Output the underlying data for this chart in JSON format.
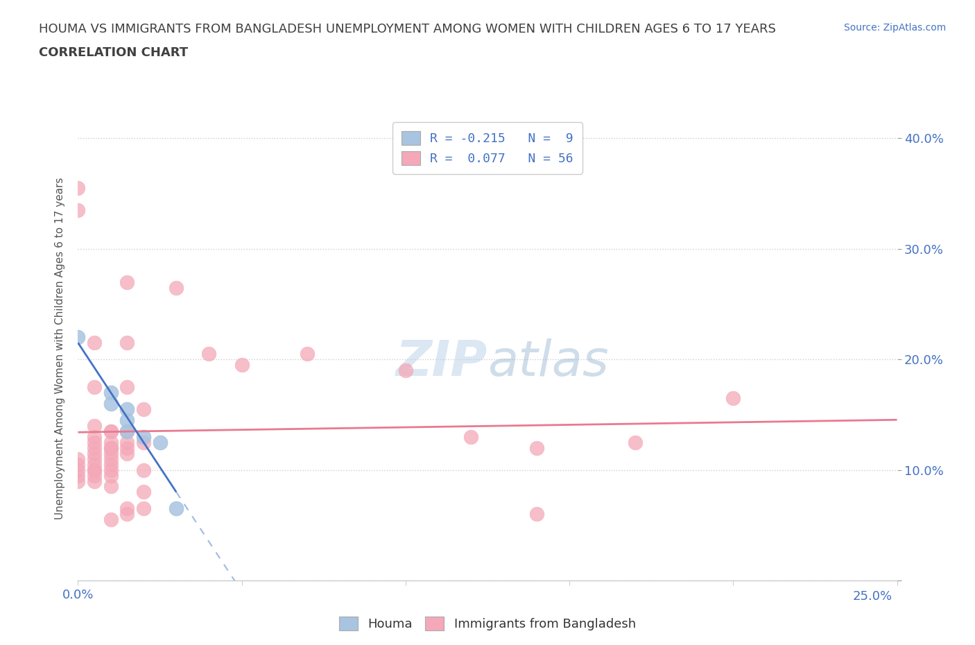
{
  "title_line1": "HOUMA VS IMMIGRANTS FROM BANGLADESH UNEMPLOYMENT AMONG WOMEN WITH CHILDREN AGES 6 TO 17 YEARS",
  "title_line2": "CORRELATION CHART",
  "source": "Source: ZipAtlas.com",
  "ylabel": "Unemployment Among Women with Children Ages 6 to 17 years",
  "xlim": [
    0.0,
    0.25
  ],
  "ylim": [
    0.0,
    0.42
  ],
  "xticks": [
    0.0,
    0.05,
    0.1,
    0.15,
    0.2,
    0.25
  ],
  "yticks": [
    0.0,
    0.1,
    0.2,
    0.3,
    0.4
  ],
  "houma_color": "#a8c4e0",
  "bangladesh_color": "#f4a8b8",
  "houma_R": -0.215,
  "houma_N": 9,
  "bangladesh_R": 0.077,
  "bangladesh_N": 56,
  "houma_line_color": "#4472c4",
  "bangladesh_line_color": "#e87a90",
  "houma_points": [
    [
      0.0,
      0.22
    ],
    [
      0.01,
      0.17
    ],
    [
      0.01,
      0.16
    ],
    [
      0.015,
      0.155
    ],
    [
      0.015,
      0.145
    ],
    [
      0.015,
      0.135
    ],
    [
      0.02,
      0.13
    ],
    [
      0.025,
      0.125
    ],
    [
      0.03,
      0.065
    ]
  ],
  "bangladesh_points": [
    [
      0.0,
      0.355
    ],
    [
      0.0,
      0.335
    ],
    [
      0.0,
      0.11
    ],
    [
      0.0,
      0.105
    ],
    [
      0.0,
      0.1
    ],
    [
      0.0,
      0.095
    ],
    [
      0.0,
      0.09
    ],
    [
      0.005,
      0.215
    ],
    [
      0.005,
      0.175
    ],
    [
      0.005,
      0.14
    ],
    [
      0.005,
      0.13
    ],
    [
      0.005,
      0.125
    ],
    [
      0.005,
      0.12
    ],
    [
      0.005,
      0.115
    ],
    [
      0.005,
      0.11
    ],
    [
      0.005,
      0.105
    ],
    [
      0.005,
      0.1
    ],
    [
      0.005,
      0.1
    ],
    [
      0.005,
      0.095
    ],
    [
      0.005,
      0.09
    ],
    [
      0.01,
      0.135
    ],
    [
      0.01,
      0.135
    ],
    [
      0.01,
      0.125
    ],
    [
      0.01,
      0.12
    ],
    [
      0.01,
      0.12
    ],
    [
      0.01,
      0.115
    ],
    [
      0.01,
      0.11
    ],
    [
      0.01,
      0.105
    ],
    [
      0.01,
      0.1
    ],
    [
      0.01,
      0.095
    ],
    [
      0.01,
      0.085
    ],
    [
      0.01,
      0.055
    ],
    [
      0.015,
      0.27
    ],
    [
      0.015,
      0.215
    ],
    [
      0.015,
      0.175
    ],
    [
      0.015,
      0.135
    ],
    [
      0.015,
      0.125
    ],
    [
      0.015,
      0.12
    ],
    [
      0.015,
      0.115
    ],
    [
      0.015,
      0.065
    ],
    [
      0.015,
      0.06
    ],
    [
      0.02,
      0.155
    ],
    [
      0.02,
      0.125
    ],
    [
      0.02,
      0.1
    ],
    [
      0.02,
      0.08
    ],
    [
      0.02,
      0.065
    ],
    [
      0.03,
      0.265
    ],
    [
      0.04,
      0.205
    ],
    [
      0.05,
      0.195
    ],
    [
      0.07,
      0.205
    ],
    [
      0.1,
      0.19
    ],
    [
      0.12,
      0.13
    ],
    [
      0.14,
      0.12
    ],
    [
      0.14,
      0.06
    ],
    [
      0.17,
      0.125
    ],
    [
      0.2,
      0.165
    ]
  ],
  "grid_color": "#cccccc",
  "background_color": "#ffffff",
  "title_color": "#404040",
  "axis_label_color": "#555555"
}
